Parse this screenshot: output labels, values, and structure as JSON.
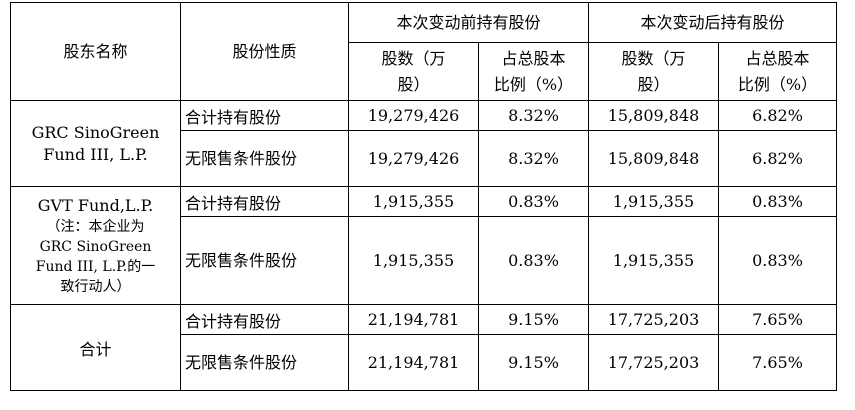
{
  "headers": {
    "shareholder": "股东名称",
    "share_type": "股份性质",
    "before": "本次变动前持有股份",
    "after": "本次变动后持有股份",
    "shares_col_line1": "股数（万",
    "shares_col_line2": "股）",
    "ratio_col_line1": "占总股本",
    "ratio_col_line2": "比例（%）"
  },
  "groups": [
    {
      "name_line1": "GRC SinoGreen",
      "name_line2": "Fund III, L.P.",
      "rows": [
        {
          "type": "合计持有股份",
          "before_shares": "19,279,426",
          "before_ratio": "8.32%",
          "after_shares": "15,809,848",
          "after_ratio": "6.82%"
        },
        {
          "type": "无限售条件股份",
          "before_shares": "19,279,426",
          "before_ratio": "8.32%",
          "after_shares": "15,809,848",
          "after_ratio": "6.82%"
        }
      ]
    },
    {
      "name_line1": "GVT Fund,L.P.",
      "note_line1": "（注：本企业为",
      "note_line2": "GRC SinoGreen",
      "note_line3": "Fund III, L.P.的一",
      "note_line4": "致行动人）",
      "rows": [
        {
          "type": "合计持有股份",
          "before_shares": "1,915,355",
          "before_ratio": "0.83%",
          "after_shares": "1,915,355",
          "after_ratio": "0.83%"
        },
        {
          "type": "无限售条件股份",
          "before_shares": "1,915,355",
          "before_ratio": "0.83%",
          "after_shares": "1,915,355",
          "after_ratio": "0.83%"
        }
      ]
    },
    {
      "name_line1": "合计",
      "rows": [
        {
          "type": "合计持有股份",
          "before_shares": "21,194,781",
          "before_ratio": "9.15%",
          "after_shares": "17,725,203",
          "after_ratio": "7.65%"
        },
        {
          "type": "无限售条件股份",
          "before_shares": "21,194,781",
          "before_ratio": "9.15%",
          "after_shares": "17,725,203",
          "after_ratio": "7.65%"
        }
      ]
    }
  ]
}
